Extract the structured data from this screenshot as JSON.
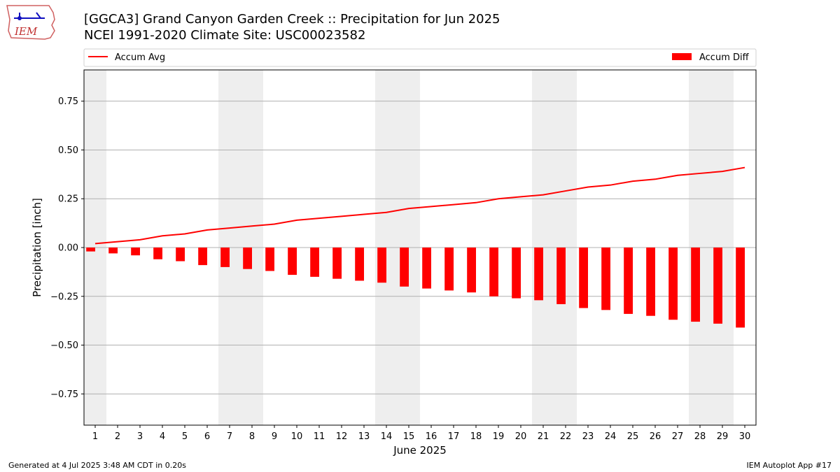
{
  "logo": {
    "text": "IEM"
  },
  "header": {
    "title": "[GGCA3] Grand Canyon Garden Creek :: Precipitation for Jun 2025",
    "subtitle": "NCEI 1991-2020 Climate Site: USC00023582"
  },
  "footer": {
    "generated": "Generated at 4 Jul 2025 3:48 AM CDT in 0.20s",
    "app": "IEM Autoplot App #17"
  },
  "colors": {
    "series": "#ff0000",
    "weekend_shade": "#eeeeee",
    "grid": "#b0b0b0"
  },
  "chart_data": {
    "type": "bar",
    "title": "[GGCA3] Grand Canyon Garden Creek :: Precipitation for Jun 2025",
    "subtitle": "NCEI 1991-2020 Climate Site: USC00023582",
    "xlabel": "June 2025",
    "ylabel": "Precipitation [inch]",
    "ylim": [
      -0.91,
      0.91
    ],
    "xlim": [
      0.5,
      30.5
    ],
    "yticks": [
      -0.75,
      -0.5,
      -0.25,
      0,
      0.25,
      0.5,
      0.75
    ],
    "ytick_labels": [
      "−0.75",
      "−0.50",
      "−0.25",
      "0.00",
      "0.25",
      "0.50",
      "0.75"
    ],
    "x": [
      1,
      2,
      3,
      4,
      5,
      6,
      7,
      8,
      9,
      10,
      11,
      12,
      13,
      14,
      15,
      16,
      17,
      18,
      19,
      20,
      21,
      22,
      23,
      24,
      25,
      26,
      27,
      28,
      29,
      30
    ],
    "grid": "horizontal",
    "legend_placement": "top, above plot",
    "shaded_weekends": [
      [
        0.5,
        1.5
      ],
      [
        6.5,
        8.5
      ],
      [
        13.5,
        15.5
      ],
      [
        20.5,
        22.5
      ],
      [
        27.5,
        29.5
      ]
    ],
    "series": [
      {
        "name": "Accum Avg",
        "type": "line",
        "color": "#ff0000",
        "values": [
          0.02,
          0.03,
          0.04,
          0.06,
          0.07,
          0.09,
          0.1,
          0.11,
          0.12,
          0.14,
          0.15,
          0.16,
          0.17,
          0.18,
          0.2,
          0.21,
          0.22,
          0.23,
          0.25,
          0.26,
          0.27,
          0.29,
          0.31,
          0.32,
          0.34,
          0.35,
          0.37,
          0.38,
          0.39,
          0.41
        ]
      },
      {
        "name": "Accum Diff",
        "type": "bar",
        "color": "#ff0000",
        "values": [
          -0.02,
          -0.03,
          -0.04,
          -0.06,
          -0.07,
          -0.09,
          -0.1,
          -0.11,
          -0.12,
          -0.14,
          -0.15,
          -0.16,
          -0.17,
          -0.18,
          -0.2,
          -0.21,
          -0.22,
          -0.23,
          -0.25,
          -0.26,
          -0.27,
          -0.29,
          -0.31,
          -0.32,
          -0.34,
          -0.35,
          -0.37,
          -0.38,
          -0.39,
          -0.41
        ]
      }
    ]
  }
}
